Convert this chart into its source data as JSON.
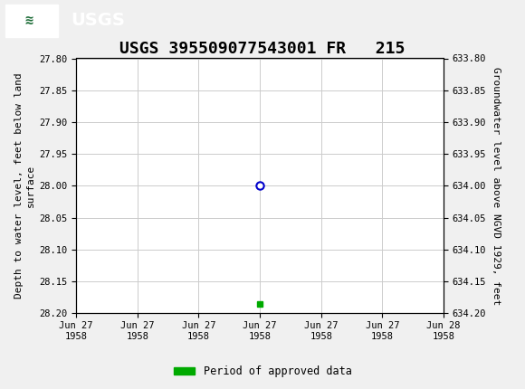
{
  "title": "USGS 395509077543001 FR   215",
  "left_ylabel": "Depth to water level, feet below land\nsurface",
  "right_ylabel": "Groundwater level above NGVD 1929, feet",
  "ylim_left": [
    27.8,
    28.2
  ],
  "ylim_right": [
    633.8,
    634.2
  ],
  "left_yticks": [
    27.8,
    27.85,
    27.9,
    27.95,
    28.0,
    28.05,
    28.1,
    28.15,
    28.2
  ],
  "right_yticks": [
    634.2,
    634.15,
    634.1,
    634.05,
    634.0,
    633.95,
    633.9,
    633.85,
    633.8
  ],
  "open_circle_depth": 28.0,
  "green_square_depth": 28.185,
  "x_tick_labels": [
    "Jun 27\n1958",
    "Jun 27\n1958",
    "Jun 27\n1958",
    "Jun 27\n1958",
    "Jun 27\n1958",
    "Jun 27\n1958",
    "Jun 28\n1958"
  ],
  "legend_label": "Period of approved data",
  "legend_color": "#00aa00",
  "header_bg_color": "#1a6b35",
  "header_text_color": "#ffffff",
  "plot_bg_color": "#ffffff",
  "fig_bg_color": "#f0f0f0",
  "grid_color": "#cccccc",
  "open_circle_color": "#0000cc",
  "title_fontsize": 13,
  "axis_fontsize": 8,
  "tick_fontsize": 7.5,
  "font_family": "monospace"
}
